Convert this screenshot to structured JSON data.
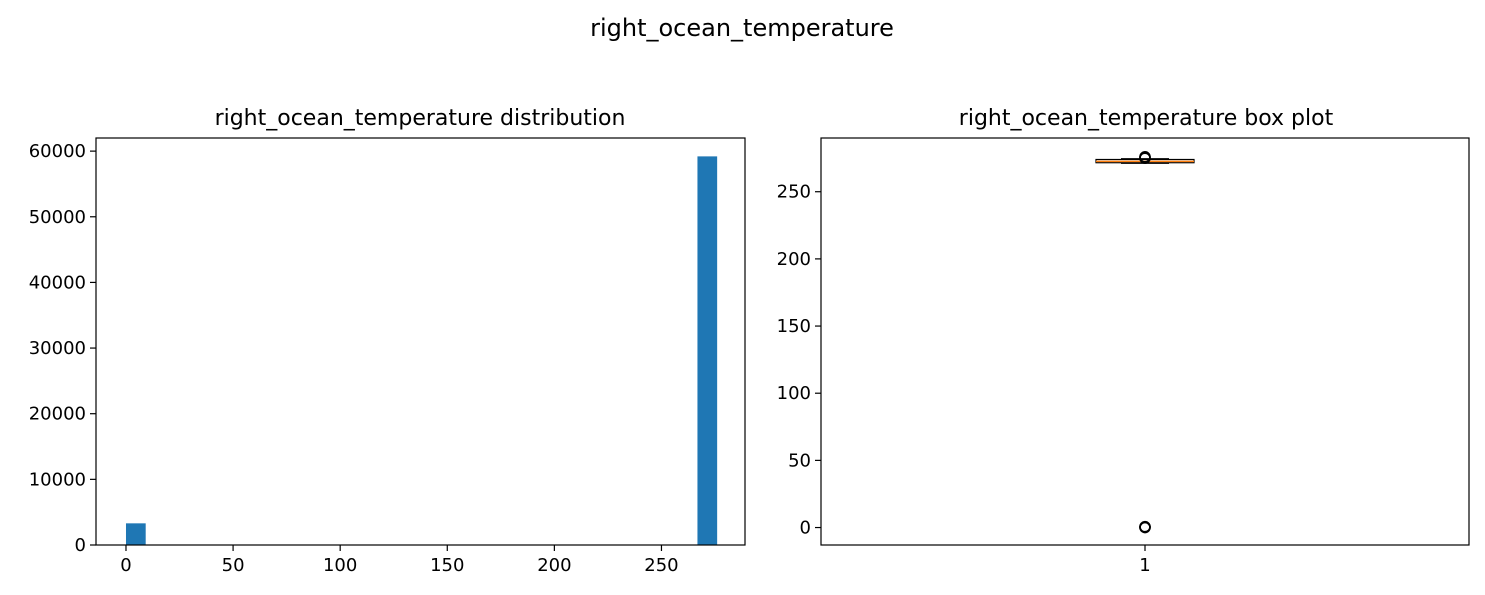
{
  "figure": {
    "suptitle": "right_ocean_temperature"
  },
  "chart_data": [
    {
      "type": "bar",
      "title": "right_ocean_temperature distribution",
      "xlabel": "",
      "ylabel": "",
      "xlim": [
        -14,
        289
      ],
      "ylim": [
        0,
        62000
      ],
      "grid": false,
      "x_ticks": [
        0,
        50,
        100,
        150,
        200,
        250
      ],
      "y_ticks": [
        0,
        10000,
        20000,
        30000,
        40000,
        50000,
        60000
      ],
      "bin_edges": [
        0.0,
        9.2,
        18.4,
        27.6,
        36.8,
        46.0,
        55.2,
        64.4,
        73.6,
        82.8,
        92.0,
        101.2,
        110.4,
        119.6,
        128.8,
        138.0,
        147.2,
        156.4,
        165.6,
        174.8,
        184.0,
        193.2,
        202.4,
        211.6,
        220.8,
        230.0,
        239.2,
        248.4,
        257.6,
        266.8,
        276.0
      ],
      "values": [
        3300,
        0,
        0,
        0,
        0,
        0,
        0,
        0,
        0,
        0,
        0,
        0,
        0,
        0,
        0,
        0,
        0,
        0,
        0,
        0,
        0,
        0,
        0,
        0,
        0,
        0,
        0,
        0,
        0,
        59200
      ],
      "color": "#1f77b4"
    },
    {
      "type": "box",
      "title": "right_ocean_temperature box plot",
      "xlabel": "",
      "ylabel": "",
      "x_ticks": [
        "1"
      ],
      "ylim": [
        -13,
        290
      ],
      "grid": false,
      "y_ticks": [
        0,
        50,
        100,
        150,
        200,
        250
      ],
      "box": {
        "q1": 271.6,
        "median": 272.6,
        "q3": 274.0,
        "whisker_low": 271.2,
        "whisker_high": 274.6,
        "outliers_low": [
          0,
          0.3,
          0.6
        ],
        "outliers_high": [
          275.0,
          275.5,
          276.0
        ]
      },
      "median_color": "#ff7f0e"
    }
  ]
}
